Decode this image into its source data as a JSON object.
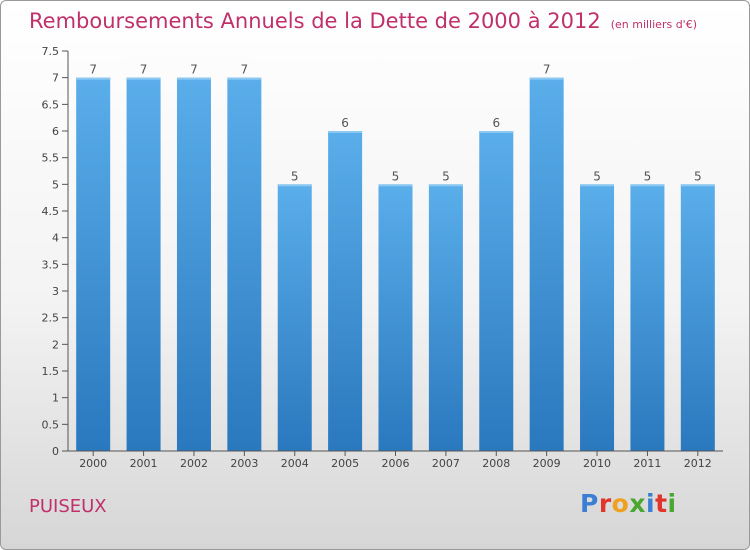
{
  "title": "Remboursements Annuels de la Dette de 2000 à 2012",
  "subtitle": "(en milliers d'€)",
  "location": "PUISEUX",
  "logo": {
    "text": "Proxiti",
    "letter_colors": [
      "#3b7fd4",
      "#e0342c",
      "#f0a020",
      "#4aa832",
      "#3b7fd4",
      "#e0342c",
      "#4aa832"
    ]
  },
  "colors": {
    "bar_top": "#5aaeea",
    "bar_bottom": "#2a78be",
    "title": "#c0306a"
  },
  "chart_data": {
    "type": "bar",
    "title": "Remboursements Annuels de la Dette de 2000 à 2012",
    "subtitle": "(en milliers d'€)",
    "categories": [
      "2000",
      "2001",
      "2002",
      "2003",
      "2004",
      "2005",
      "2006",
      "2007",
      "2008",
      "2009",
      "2010",
      "2011",
      "2012"
    ],
    "values": [
      7,
      7,
      7,
      7,
      5,
      6,
      5,
      5,
      6,
      7,
      5,
      5,
      5
    ],
    "yticks": [
      "0",
      "0.5",
      "1",
      "1.5",
      "2",
      "2.5",
      "3",
      "3.5",
      "4",
      "4.5",
      "5",
      "5.5",
      "6",
      "6.5",
      "7",
      "7.5"
    ],
    "ylim": [
      0,
      7.5
    ],
    "grid": false,
    "data_labels": true
  }
}
